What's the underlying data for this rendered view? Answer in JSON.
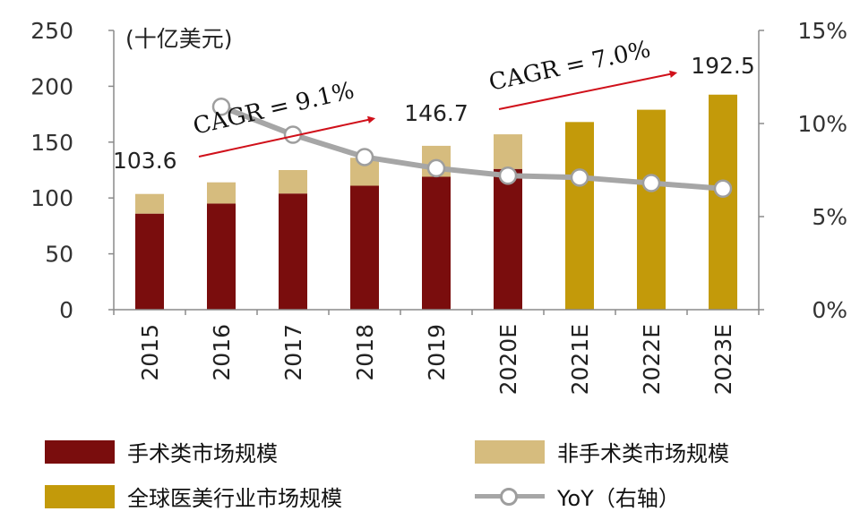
{
  "colors": {
    "surgical": "#7a0d0d",
    "nonsurgical": "#d6bc7e",
    "global": "#c39a0a",
    "yoy": "#a6a6a6",
    "arrow": "#d0101a",
    "axis": "#8a8a8a"
  },
  "chart_data": {
    "type": "bar",
    "unit_label": "(十亿美元)",
    "categories": [
      "2015",
      "2016",
      "2017",
      "2018",
      "2019",
      "2020E",
      "2021E",
      "2022E",
      "2023E"
    ],
    "series": [
      {
        "name": "手术类市场规模",
        "values": [
          86,
          95,
          104,
          111,
          119,
          126,
          null,
          null,
          null
        ]
      },
      {
        "name": "非手术类市场规模",
        "values": [
          17.6,
          19,
          21,
          25,
          27.7,
          31,
          null,
          null,
          null
        ]
      },
      {
        "name": "全球医美行业市场规模",
        "values": [
          null,
          null,
          null,
          null,
          null,
          null,
          168,
          179,
          192.5
        ]
      },
      {
        "name": "YoY（右轴）",
        "axis": "right",
        "values": [
          null,
          0.109,
          0.094,
          0.082,
          0.076,
          0.072,
          0.071,
          0.068,
          0.065
        ]
      }
    ],
    "left_axis": {
      "ylim": [
        0,
        250
      ],
      "ticks": [
        "0",
        "50",
        "100",
        "150",
        "200",
        "250"
      ]
    },
    "right_axis": {
      "ylim": [
        0,
        0.15
      ],
      "ticks": [
        "0%",
        "5%",
        "10%",
        "15%"
      ]
    },
    "data_labels": [
      {
        "category": "2015",
        "text": "103.6"
      },
      {
        "category": "2019",
        "text": "146.7"
      },
      {
        "category": "2023E",
        "text": "192.5"
      }
    ],
    "annotations": [
      "CAGR = 9.1%",
      "CAGR = 7.0%"
    ],
    "legend": {
      "position": "bottom"
    }
  }
}
